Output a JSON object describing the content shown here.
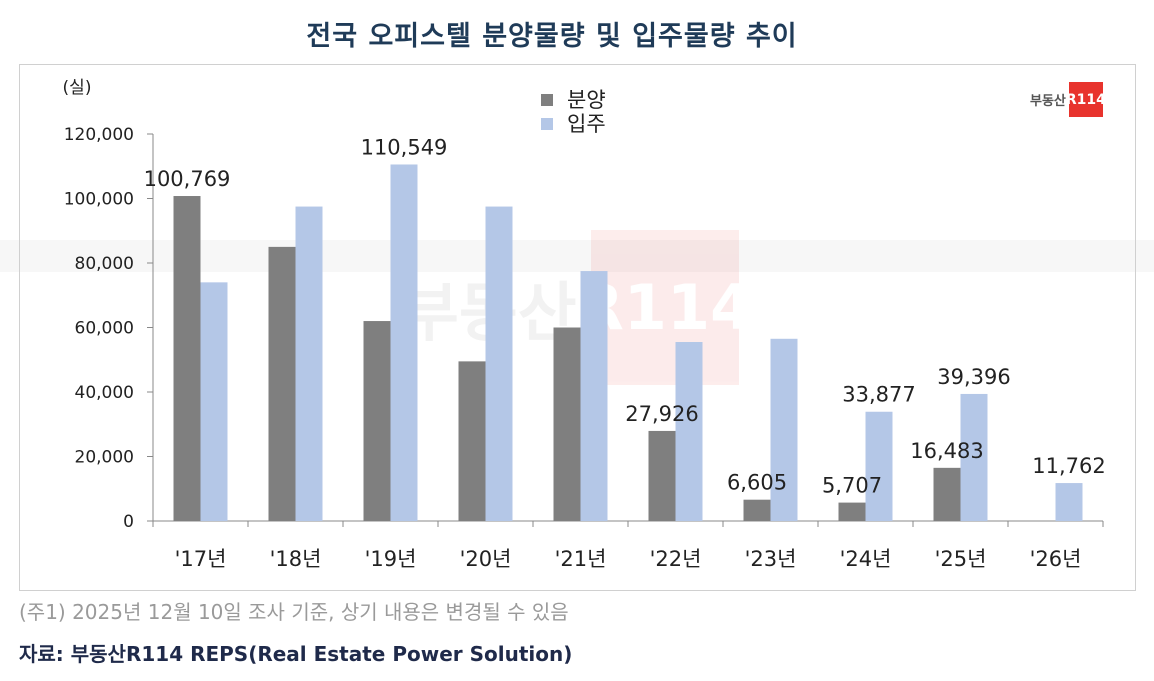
{
  "title": "전국 오피스텔 분양물량 및 입주물량 추이",
  "logo": {
    "korean": "부동산",
    "mark": "R114"
  },
  "note": "(주1) 2025년 12월 10일 조사 기준, 상기 내용은 변경될 수 있음",
  "source": "자료: 부동산R114 REPS(Real Estate Power Solution)",
  "chart_data": {
    "type": "bar",
    "unit_label": "(실)",
    "categories": [
      "'17년",
      "'18년",
      "'19년",
      "'20년",
      "'21년",
      "'22년",
      "'23년",
      "'24년",
      "'25년",
      "'26년"
    ],
    "series": [
      {
        "name": "분양",
        "color": "#7f7f7f",
        "values": [
          100769,
          85000,
          62000,
          49500,
          60000,
          27926,
          6605,
          5707,
          16483,
          null
        ]
      },
      {
        "name": "입주",
        "color": "#b4c7e7",
        "values": [
          74000,
          97500,
          110549,
          97500,
          77500,
          55500,
          56500,
          33877,
          39396,
          11762
        ]
      }
    ],
    "data_labels": [
      {
        "series": 0,
        "index": 0,
        "text": "100,769"
      },
      {
        "series": 1,
        "index": 2,
        "text": "110,549"
      },
      {
        "series": 0,
        "index": 5,
        "text": "27,926"
      },
      {
        "series": 0,
        "index": 6,
        "text": "6,605"
      },
      {
        "series": 0,
        "index": 7,
        "text": "5,707"
      },
      {
        "series": 1,
        "index": 7,
        "text": "33,877"
      },
      {
        "series": 0,
        "index": 8,
        "text": "16,483"
      },
      {
        "series": 1,
        "index": 8,
        "text": "39,396"
      },
      {
        "series": 1,
        "index": 9,
        "text": "11,762"
      }
    ],
    "ylim": [
      0,
      120000
    ],
    "yticks": [
      0,
      20000,
      40000,
      60000,
      80000,
      100000,
      120000
    ],
    "ytick_labels": [
      "0",
      "20,000",
      "40,000",
      "60,000",
      "80,000",
      "100,000",
      "120,000"
    ],
    "legend_position": "top-center",
    "grid": false
  }
}
